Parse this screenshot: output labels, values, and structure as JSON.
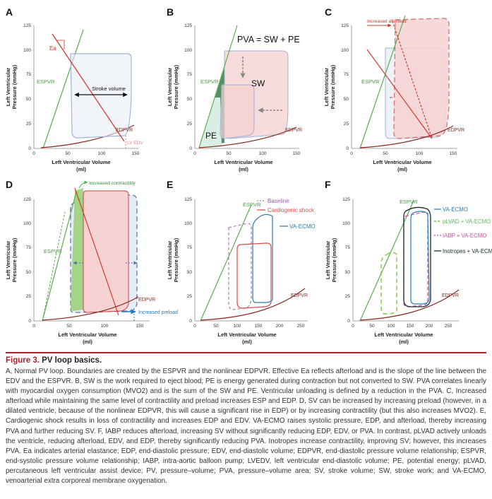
{
  "panels": {
    "A": {
      "label": "A",
      "ea": "Ea",
      "espvr": "ESPVR",
      "edpvr": "EDPVR",
      "stroke_volume": "Stroke volume",
      "lvedv": "LV EDV"
    },
    "B": {
      "label": "B",
      "pva_eq": "PVA = SW + PE",
      "sw": "SW",
      "pe": "PE",
      "espvr": "ESPVR",
      "edpvr": "EDPVR"
    },
    "C": {
      "label": "C",
      "afterload": "Increased afterload",
      "espvr": "ESPVR",
      "edpvr": "EDPVR"
    },
    "D": {
      "label": "D",
      "contractility": "Increased  contractility",
      "preload": "Increased preload",
      "espvr": "ESPVR",
      "edpvr": "EDPVR"
    },
    "E": {
      "label": "E",
      "legend": [
        "Baseline",
        "Cardiogenic shock",
        "VA-ECMO"
      ],
      "espvr": "ESPVR",
      "edpvr": "EDPVR"
    },
    "F": {
      "label": "F",
      "legend": [
        "VA-ECMO",
        "pLVAD + VA-ECMO",
        "IABP + VA-ECMO",
        "Inotropes + VA-ECMO"
      ],
      "espvr": "ESPVR",
      "edpvr": "EDPVR"
    }
  },
  "axes": {
    "xlabel": "Left Ventricular Volume",
    "xunit": "(ml)",
    "ylabel_line1": "Left Ventricular",
    "ylabel_line2": "Pressure (mmHg)",
    "xticks_top": [
      "0",
      "50",
      "100",
      "150"
    ],
    "xticks_bottom": [
      "0",
      "50",
      "100",
      "150",
      "200",
      "250"
    ],
    "yticks": [
      "0",
      "25",
      "50",
      "75",
      "100",
      "125"
    ]
  },
  "caption": {
    "fig_label": "Figure 3.",
    "title": "PV loop basics.",
    "text": "A, Normal PV loop. Boundaries are created by the ESPVR and the nonlinear EDPVR. Effective Ea reflects afterload and is the slope of the line between the EDV and the ESPVR. B, SW is the work required to eject blood; PE is energy generated during contraction but not converted to SW. PVA correlates linearly with myocardial oxygen consumption (MVO2) and is the sum of the SW and PE. Ventricular unloading is defined by a reduction in the PVA. C, Increased afterload while maintaining the same level of contractility and preload increases ESP and EDP. D, SV can be increased by increasing preload (however, in a dilated ventricle, because of the nonlinear EDPVR, this will cause a significant rise in EDP) or by increasing contractility (but this also increases MVO2). E, Cardiogenic shock results in loss of contractility and increases EDP and EDV. VA-ECMO raises systolic pressure, EDP, and afterload, thereby increasing PVA and further reducing SV. F, IABP reduces afterload, increasing SV without significantly reducing EDP, EDV, or PVA. In contrast, pLVAD actively unloads the ventricle, reducing afterload, EDV, and EDP, thereby significantly reducing PVA. Inotropes increase contractility, improving SV; however, this increases PVA. Ea indicates arterial elastance; EDP, end-diastolic pressure; EDV, end-diastolic volume; EDPVR, end-diastolic pressure volume relationship; ESPVR, end-systolic pressure volume relationship; IABP, intra-aortic balloon pump; LVEDV, left ventricular end-diastolic volume; PE, potential energy; pLVAD, percutaneous left ventricular assist device; PV, pressure–volume; PVA, pressure–volume area; SV, stroke volume; SW, stroke work; and VA-ECMO, venoarterial extra corporeal membrane oxygenation."
  }
}
